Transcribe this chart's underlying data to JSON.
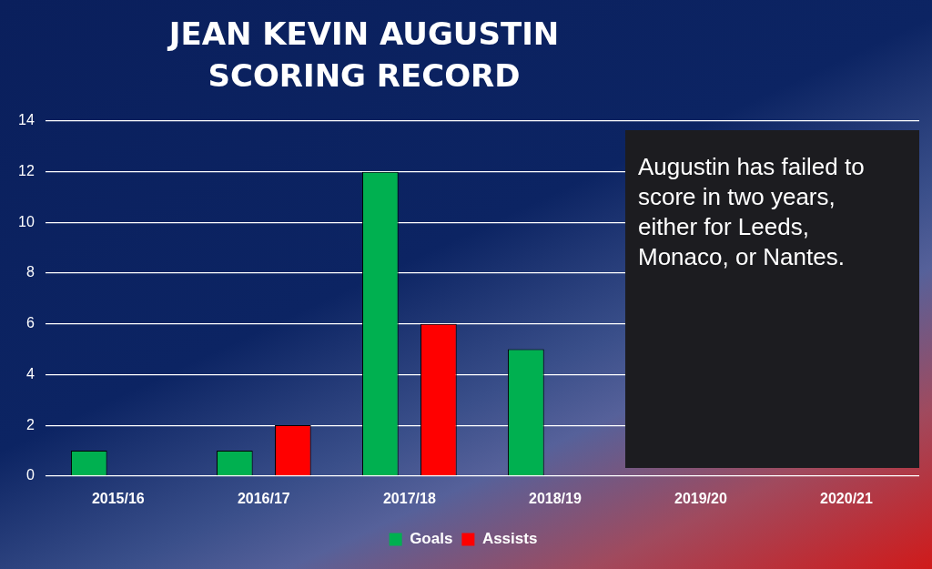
{
  "chart_data": {
    "type": "bar",
    "title": "JEAN KEVIN AUGUSTIN SCORING RECORD",
    "categories": [
      "2015/16",
      "2016/17",
      "2017/18",
      "2018/19",
      "2019/20",
      "2020/21"
    ],
    "series": [
      {
        "name": "Goals",
        "color": "#00b050",
        "values": [
          1,
          1,
          12,
          5,
          0,
          0
        ]
      },
      {
        "name": "Assists",
        "color": "#ff0000",
        "values": [
          0,
          2,
          6,
          0,
          0,
          0
        ]
      }
    ],
    "ylim": [
      0,
      14
    ],
    "yticks": [
      0,
      2,
      4,
      6,
      8,
      10,
      12,
      14
    ],
    "grid": "y",
    "legend": "bottom",
    "annotations": [
      "Augustin has failed to score in two years, either for Leeds, Monaco, or Nantes."
    ]
  }
}
